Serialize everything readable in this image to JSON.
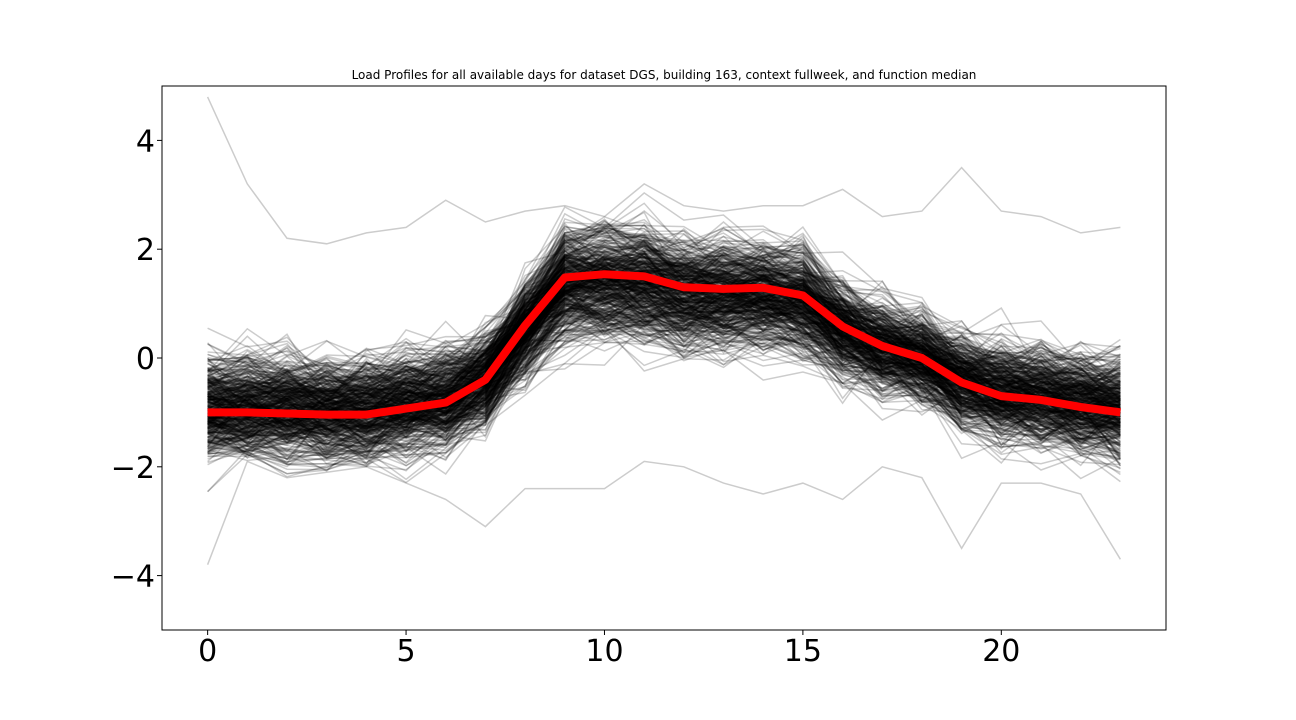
{
  "chart_data": {
    "type": "line",
    "title": "Load Profiles for all available days for dataset DGS, building 163, context fullweek, and function median",
    "xlabel": "",
    "ylabel": "",
    "xlim": [
      -1.15,
      24.15
    ],
    "ylim": [
      -5,
      5
    ],
    "x_ticks": [
      0,
      5,
      10,
      15,
      20
    ],
    "x_tick_labels": [
      "0",
      "5",
      "10",
      "15",
      "20"
    ],
    "y_ticks": [
      -4,
      -2,
      0,
      2,
      4
    ],
    "y_tick_labels": [
      "−4",
      "−2",
      "0",
      "2",
      "4"
    ],
    "grid": false,
    "legend": "none",
    "x": [
      0,
      1,
      2,
      3,
      4,
      5,
      6,
      7,
      8,
      9,
      10,
      11,
      12,
      13,
      14,
      15,
      16,
      17,
      18,
      19,
      20,
      21,
      22,
      23
    ],
    "series": [
      {
        "role": "median",
        "color": "#ff0000",
        "values": [
          -1.0,
          -1.0,
          -1.02,
          -1.04,
          -1.04,
          -0.93,
          -0.82,
          -0.4,
          0.6,
          1.48,
          1.54,
          1.5,
          1.3,
          1.27,
          1.29,
          1.15,
          0.58,
          0.22,
          0.0,
          -0.45,
          -0.7,
          -0.77,
          -0.9,
          -1.0
        ]
      },
      {
        "role": "daily-profiles",
        "color": "#000000",
        "count": 500,
        "opacity": 0.2,
        "spread_low": [
          -3.8,
          -1.9,
          -2.2,
          -2.1,
          -2.0,
          -2.3,
          -2.6,
          -3.1,
          -2.4,
          -2.4,
          -2.4,
          -1.9,
          -2.0,
          -2.3,
          -2.5,
          -2.3,
          -2.6,
          -2.0,
          -2.2,
          -3.5,
          -2.3,
          -2.3,
          -2.5,
          -3.7
        ],
        "spread_high": [
          4.8,
          3.2,
          2.2,
          2.1,
          2.3,
          2.4,
          2.9,
          2.5,
          2.7,
          2.8,
          2.6,
          3.2,
          2.8,
          2.7,
          2.8,
          2.8,
          3.1,
          2.6,
          2.7,
          3.5,
          2.7,
          2.6,
          2.3,
          2.4
        ]
      }
    ]
  }
}
